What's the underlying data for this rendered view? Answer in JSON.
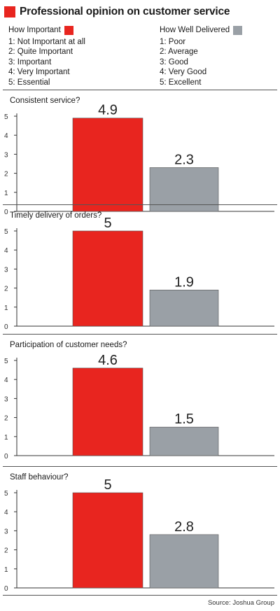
{
  "title": "Professional opinion on customer service",
  "colors": {
    "important": "#e8251f",
    "delivered": "#9aa0a6",
    "axis": "#333333"
  },
  "legend": {
    "important": {
      "label": "How Important",
      "items": [
        "1: Not Important at all",
        "2: Quite Important",
        "3: Important",
        "4: Very Important",
        "5: Essential"
      ]
    },
    "delivered": {
      "label": "How Well Delivered",
      "items": [
        "1: Poor",
        "2: Average",
        "3: Good",
        "4: Very Good",
        "5: Excellent"
      ]
    }
  },
  "chart_data": [
    {
      "type": "bar",
      "title": "Consistent service?",
      "ylim": [
        0,
        5
      ],
      "yticks": [
        "0",
        "1",
        "2",
        "3",
        "4",
        "5"
      ],
      "series": [
        {
          "values": [
            4.9
          ],
          "labels": [
            "4.9"
          ]
        },
        {
          "values": [
            2.3
          ],
          "labels": [
            "2.3"
          ]
        }
      ]
    },
    {
      "type": "bar",
      "title": "Timely delivery of orders?",
      "ylim": [
        0,
        5
      ],
      "yticks": [
        "0",
        "1",
        "2",
        "3",
        "4",
        "5"
      ],
      "series": [
        {
          "values": [
            5
          ],
          "labels": [
            "5"
          ]
        },
        {
          "values": [
            1.9
          ],
          "labels": [
            "1.9"
          ]
        }
      ]
    },
    {
      "type": "bar",
      "title": "Participation of customer needs?",
      "ylim": [
        0,
        5
      ],
      "yticks": [
        "0",
        "1",
        "2",
        "3",
        "4",
        "5"
      ],
      "series": [
        {
          "values": [
            4.6
          ],
          "labels": [
            "4.6"
          ]
        },
        {
          "values": [
            1.5
          ],
          "labels": [
            "1.5"
          ]
        }
      ]
    },
    {
      "type": "bar",
      "title": "Staff behaviour?",
      "ylim": [
        0,
        5
      ],
      "yticks": [
        "0",
        "1",
        "2",
        "3",
        "4",
        "5"
      ],
      "series": [
        {
          "values": [
            5
          ],
          "labels": [
            "5"
          ]
        },
        {
          "values": [
            2.8
          ],
          "labels": [
            "2.8"
          ]
        }
      ]
    }
  ],
  "source": "Source: Joshua Group"
}
